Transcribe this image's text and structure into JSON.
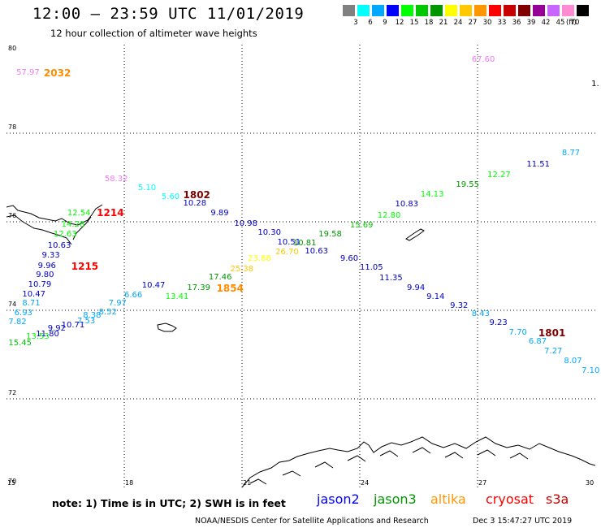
{
  "header": {
    "title": "12:00 – 23:59 UTC 11/01/2019",
    "subtitle": "12 hour collection of altimeter wave heights"
  },
  "legend": {
    "unit": "(ft)",
    "items": [
      {
        "label": "3",
        "color": "#808080"
      },
      {
        "label": "6",
        "color": "#00ffff"
      },
      {
        "label": "9",
        "color": "#00a8ff"
      },
      {
        "label": "12",
        "color": "#0000ff"
      },
      {
        "label": "15",
        "color": "#00ff00"
      },
      {
        "label": "18",
        "color": "#00c800"
      },
      {
        "label": "21",
        "color": "#009600"
      },
      {
        "label": "24",
        "color": "#ffff00"
      },
      {
        "label": "27",
        "color": "#ffc800"
      },
      {
        "label": "30",
        "color": "#ff9600"
      },
      {
        "label": "33",
        "color": "#ff0000"
      },
      {
        "label": "36",
        "color": "#c80000"
      },
      {
        "label": "39",
        "color": "#800000"
      },
      {
        "label": "42",
        "color": "#960096"
      },
      {
        "label": "45",
        "color": "#c864ff"
      },
      {
        "label": "70",
        "color": "#ff8cd2"
      },
      {
        "label": "",
        "color": "#000000"
      }
    ]
  },
  "map": {
    "lat_min": 70,
    "lat_max": 80,
    "lon_min": 15,
    "lon_max": 30,
    "lat_ticks": [
      "80",
      "78",
      "76",
      "74",
      "72",
      "70"
    ],
    "lon_ticks": [
      "15",
      "18",
      "21",
      "24",
      "27",
      "30"
    ],
    "gridlines": true
  },
  "observations": [
    {
      "value": "57.97",
      "lon": 15.25,
      "lat": 79.35,
      "color": "#f07cf0"
    },
    {
      "value": "67.60",
      "lon": 26.85,
      "lat": 79.65,
      "color": "#f07cf0"
    },
    {
      "value": "58.32",
      "lon": 17.5,
      "lat": 76.95,
      "color": "#f07cf0"
    },
    {
      "value": "5.10",
      "lon": 18.35,
      "lat": 76.75,
      "color": "#00ffff"
    },
    {
      "value": "5.60",
      "lon": 18.95,
      "lat": 76.55,
      "color": "#00ffff"
    },
    {
      "value": "10.28",
      "lon": 19.5,
      "lat": 76.4,
      "color": "#0000c8"
    },
    {
      "value": "9.89",
      "lon": 20.2,
      "lat": 76.18,
      "color": "#0000c8"
    },
    {
      "value": "10.98",
      "lon": 20.8,
      "lat": 75.95,
      "color": "#0000c8"
    },
    {
      "value": "10.30",
      "lon": 21.4,
      "lat": 75.75,
      "color": "#0000c8"
    },
    {
      "value": "10.51",
      "lon": 21.9,
      "lat": 75.53,
      "color": "#0000c8"
    },
    {
      "value": "10.81",
      "lon": 22.3,
      "lat": 75.5,
      "color": "#009600"
    },
    {
      "value": "10.63",
      "lon": 22.6,
      "lat": 75.33,
      "color": "#0000c8"
    },
    {
      "value": "9.60",
      "lon": 23.5,
      "lat": 75.15,
      "color": "#0000c8"
    },
    {
      "value": "11.05",
      "lon": 24.0,
      "lat": 74.95,
      "color": "#0000c8"
    },
    {
      "value": "11.35",
      "lon": 24.5,
      "lat": 74.72,
      "color": "#0000c8"
    },
    {
      "value": "9.94",
      "lon": 25.2,
      "lat": 74.5,
      "color": "#0000c8"
    },
    {
      "value": "9.14",
      "lon": 25.7,
      "lat": 74.3,
      "color": "#0000c8"
    },
    {
      "value": "9.32",
      "lon": 26.3,
      "lat": 74.1,
      "color": "#0000c8"
    },
    {
      "value": "8.43",
      "lon": 26.85,
      "lat": 73.9,
      "color": "#00a8ff"
    },
    {
      "value": "9.23",
      "lon": 27.3,
      "lat": 73.7,
      "color": "#0000c8"
    },
    {
      "value": "7.70",
      "lon": 27.8,
      "lat": 73.48,
      "color": "#00a8ff"
    },
    {
      "value": "6.87",
      "lon": 28.3,
      "lat": 73.28,
      "color": "#00a8ff"
    },
    {
      "value": "7.27",
      "lon": 28.7,
      "lat": 73.07,
      "color": "#00a8ff"
    },
    {
      "value": "8.07",
      "lon": 29.2,
      "lat": 72.85,
      "color": "#00a8ff"
    },
    {
      "value": "7.10",
      "lon": 29.65,
      "lat": 72.63,
      "color": "#00a8ff"
    },
    {
      "value": "23.88",
      "lon": 21.15,
      "lat": 75.15,
      "color": "#ffff00"
    },
    {
      "value": "26.70",
      "lon": 21.85,
      "lat": 75.3,
      "color": "#ffc800"
    },
    {
      "value": "25.38",
      "lon": 20.7,
      "lat": 74.92,
      "color": "#ffc800"
    },
    {
      "value": "17.46",
      "lon": 20.15,
      "lat": 74.73,
      "color": "#009600"
    },
    {
      "value": "17.39",
      "lon": 19.6,
      "lat": 74.5,
      "color": "#009600"
    },
    {
      "value": "13.41",
      "lon": 19.05,
      "lat": 74.3,
      "color": "#00ff00"
    },
    {
      "value": "19.58",
      "lon": 22.95,
      "lat": 75.7,
      "color": "#009600"
    },
    {
      "value": "15.69",
      "lon": 23.75,
      "lat": 75.9,
      "color": "#00c800"
    },
    {
      "value": "12.80",
      "lon": 24.45,
      "lat": 76.13,
      "color": "#00ff00"
    },
    {
      "value": "10.83",
      "lon": 24.9,
      "lat": 76.38,
      "color": "#0000c8"
    },
    {
      "value": "14.13",
      "lon": 25.55,
      "lat": 76.6,
      "color": "#00ff00"
    },
    {
      "value": "19.55",
      "lon": 26.45,
      "lat": 76.82,
      "color": "#009600"
    },
    {
      "value": "12.27",
      "lon": 27.25,
      "lat": 77.05,
      "color": "#00ff00"
    },
    {
      "value": "11.51",
      "lon": 28.25,
      "lat": 77.28,
      "color": "#0000c8"
    },
    {
      "value": "8.77",
      "lon": 29.15,
      "lat": 77.55,
      "color": "#00a8ff"
    },
    {
      "value": "12.54",
      "lon": 16.55,
      "lat": 76.18,
      "color": "#00ff00"
    },
    {
      "value": "14.28",
      "lon": 16.4,
      "lat": 75.93,
      "color": "#00ff00"
    },
    {
      "value": "12.63",
      "lon": 16.2,
      "lat": 75.7,
      "color": "#00ff00"
    },
    {
      "value": "10.63",
      "lon": 16.05,
      "lat": 75.45,
      "color": "#0000c8"
    },
    {
      "value": "9.33",
      "lon": 15.9,
      "lat": 75.23,
      "color": "#0000c8"
    },
    {
      "value": "9.96",
      "lon": 15.8,
      "lat": 75.0,
      "color": "#0000c8"
    },
    {
      "value": "9.80",
      "lon": 15.75,
      "lat": 74.78,
      "color": "#0000c8"
    },
    {
      "value": "10.79",
      "lon": 15.55,
      "lat": 74.56,
      "color": "#0000c8"
    },
    {
      "value": "10.47",
      "lon": 15.4,
      "lat": 74.35,
      "color": "#0000c8"
    },
    {
      "value": "8.71",
      "lon": 15.4,
      "lat": 74.14,
      "color": "#00a8ff"
    },
    {
      "value": "6.93",
      "lon": 15.2,
      "lat": 73.93,
      "color": "#00a8ff"
    },
    {
      "value": "7.82",
      "lon": 15.05,
      "lat": 73.72,
      "color": "#00a8ff"
    },
    {
      "value": "15.45",
      "lon": 15.05,
      "lat": 73.25,
      "color": "#00c800"
    },
    {
      "value": "13.53",
      "lon": 15.5,
      "lat": 73.4,
      "color": "#00ff00"
    },
    {
      "value": "11.80",
      "lon": 15.75,
      "lat": 73.45,
      "color": "#0000c8"
    },
    {
      "value": "9.92",
      "lon": 16.05,
      "lat": 73.58,
      "color": "#0000c8"
    },
    {
      "value": "10.71",
      "lon": 16.4,
      "lat": 73.65,
      "color": "#0000c8"
    },
    {
      "value": "7.53",
      "lon": 16.8,
      "lat": 73.75,
      "color": "#00a8ff"
    },
    {
      "value": "8.38",
      "lon": 16.95,
      "lat": 73.88,
      "color": "#00a8ff"
    },
    {
      "value": "8.52",
      "lon": 17.35,
      "lat": 73.95,
      "color": "#00a8ff"
    },
    {
      "value": "7.97",
      "lon": 17.6,
      "lat": 74.15,
      "color": "#00a8ff"
    },
    {
      "value": "6.66",
      "lon": 18.0,
      "lat": 74.33,
      "color": "#00a8ff"
    },
    {
      "value": "10.47",
      "lon": 18.45,
      "lat": 74.55,
      "color": "#0000c8"
    }
  ],
  "passes": [
    {
      "label": "2032",
      "lon": 15.95,
      "lat": 79.35,
      "color": "#ff8c00"
    },
    {
      "label": "1802",
      "lon": 19.5,
      "lat": 76.6,
      "color": "#800000"
    },
    {
      "label": "1214",
      "lon": 17.3,
      "lat": 76.2,
      "color": "#ff0000"
    },
    {
      "label": "1215",
      "lon": 16.65,
      "lat": 75.0,
      "color": "#ff0000"
    },
    {
      "label": "1854",
      "lon": 20.35,
      "lat": 74.5,
      "color": "#ff8c00"
    },
    {
      "label": "1801",
      "lon": 28.55,
      "lat": 73.48,
      "color": "#800000"
    }
  ],
  "edge_labels": [
    {
      "text": "1.",
      "lon": 29.9,
      "lat": 79.1,
      "color": "#000000"
    }
  ],
  "footer": {
    "note": "note:  1) Time is in UTC;  2) SWH is in feet",
    "satellites": [
      {
        "name": "jason2",
        "color": "#0000ff"
      },
      {
        "name": "jason3",
        "color": "#009600"
      },
      {
        "name": "altika",
        "color": "#ff9600"
      },
      {
        "name": "cryosat",
        "color": "#ff0000"
      },
      {
        "name": "s3a",
        "color": "#c80000"
      }
    ],
    "credit": "NOAA/NESDIS Center for Satellite Applications and Research",
    "timestamp": "Dec  3 15:47:27 UTC 2019"
  }
}
